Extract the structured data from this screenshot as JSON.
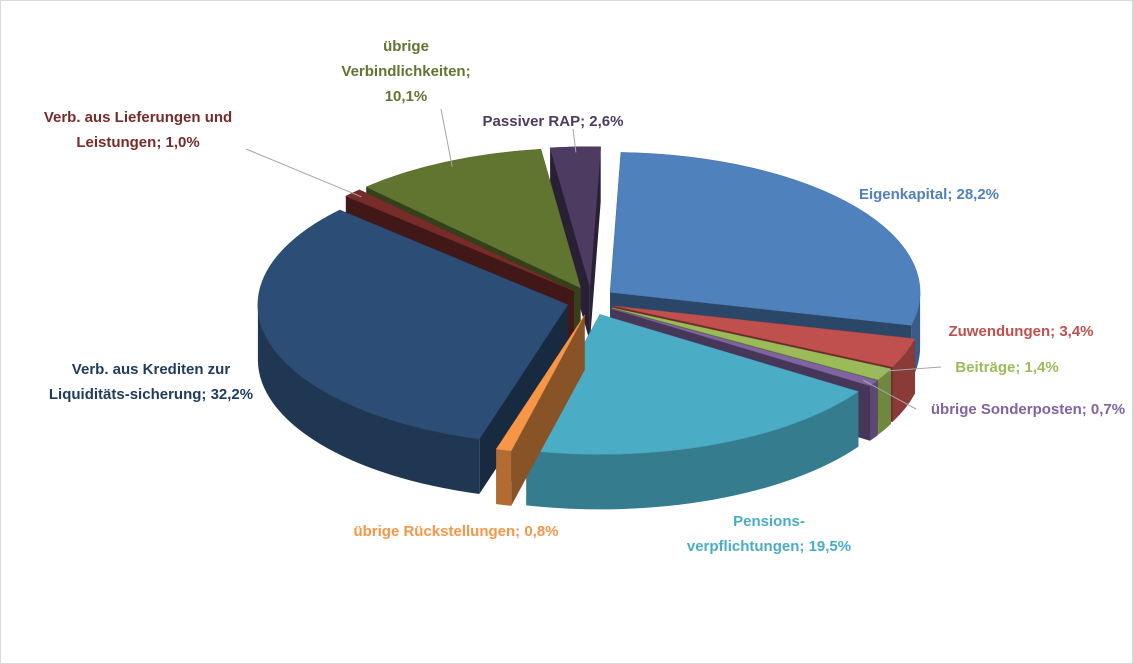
{
  "chart_data": {
    "type": "pie",
    "categories": [
      "Eigenkapital;",
      "Zuwendungen;",
      "Beiträge;",
      "übrige Sonderposten;",
      "Pensions-verpflichtungen;",
      "übrige Rückstellungen;",
      "Verb. aus Krediten zur Liquiditäts-sicherung;",
      "Verb. aus Lieferungen und Leistungen;",
      "übrige Verbindlichkeiten;",
      "Passiver RAP;"
    ],
    "values": [
      28.2,
      3.4,
      1.4,
      0.7,
      19.5,
      0.8,
      32.2,
      1.0,
      10.1,
      2.6
    ],
    "value_labels": [
      "28,2%",
      "3,4%",
      "1,4%",
      "0,7%",
      "19,5%",
      "0,8%",
      "32,2%",
      "1,0%",
      "10,1%",
      "2,6%"
    ],
    "colors": [
      "#4f81bd",
      "#c0504d",
      "#9bbb59",
      "#8064a2",
      "#4bacc6",
      "#f79646",
      "#2c4d75",
      "#772c2a",
      "#5f7530",
      "#4d3b62"
    ]
  }
}
